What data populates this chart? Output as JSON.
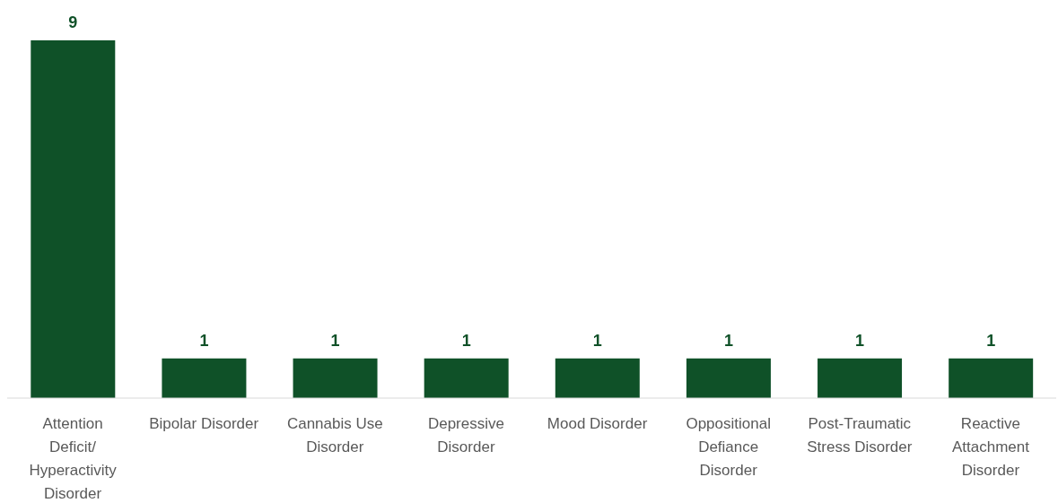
{
  "chart_data": {
    "type": "bar",
    "categories": [
      "Attention Deficit/Hyperactivity Disorder",
      "Bipolar Disorder",
      "Cannabis Use Disorder",
      "Depressive Disorder",
      "Mood Disorder",
      "Oppositional Defiance Disorder",
      "Post-Traumatic Stress Disorder",
      "Reactive Attachment Disorder"
    ],
    "values": [
      9,
      1,
      1,
      1,
      1,
      1,
      1,
      1
    ],
    "color": "#0f5128",
    "data_labels": true,
    "grid": false
  }
}
